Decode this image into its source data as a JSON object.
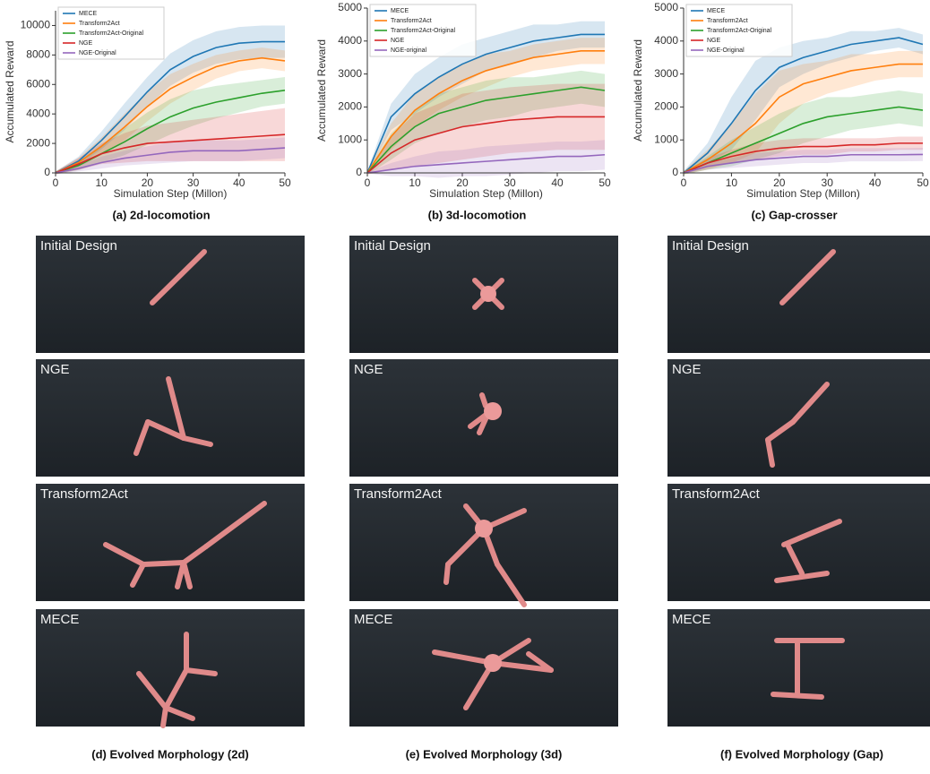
{
  "chart_data": [
    {
      "type": "line",
      "xlabel": "Simulation Step (Millon)",
      "ylabel": "Accumulated Reward",
      "caption": "(a) 2d-locomotion",
      "x": [
        0,
        5,
        10,
        15,
        20,
        25,
        30,
        35,
        40,
        45,
        50
      ],
      "xlim": [
        0,
        50
      ],
      "xticks": [
        0,
        10,
        20,
        30,
        40,
        50
      ],
      "ylim": [
        0,
        11000
      ],
      "yticks": [
        0,
        2000,
        4000,
        6000,
        8000,
        10000
      ],
      "legend": "upper-left",
      "series": [
        {
          "name": "MECE",
          "color": "#1f77b4",
          "values": [
            0,
            800,
            2200,
            3800,
            5500,
            7000,
            7900,
            8500,
            8800,
            8900,
            8900
          ],
          "std": [
            100,
            300,
            600,
            900,
            1000,
            1100,
            1100,
            1100,
            1100,
            1100,
            1100
          ]
        },
        {
          "name": "Transform2Act",
          "color": "#ff7f0e",
          "values": [
            0,
            700,
            1800,
            3100,
            4500,
            5700,
            6500,
            7200,
            7600,
            7800,
            7600
          ],
          "std": [
            100,
            300,
            600,
            900,
            1000,
            1000,
            900,
            800,
            700,
            700,
            700
          ]
        },
        {
          "name": "Transform2Act-Original",
          "color": "#2ca02c",
          "values": [
            0,
            500,
            1300,
            2100,
            3000,
            3800,
            4400,
            4800,
            5100,
            5400,
            5600
          ],
          "std": [
            100,
            300,
            600,
            900,
            1100,
            1200,
            1200,
            1100,
            1000,
            900,
            900
          ]
        },
        {
          "name": "NGE",
          "color": "#d62728",
          "values": [
            0,
            600,
            1300,
            1700,
            2000,
            2100,
            2200,
            2300,
            2400,
            2500,
            2600
          ],
          "std": [
            100,
            400,
            700,
            1000,
            1200,
            1300,
            1400,
            1500,
            1600,
            1700,
            1800
          ]
        },
        {
          "name": "NGE-Original",
          "color": "#9467bd",
          "values": [
            0,
            300,
            700,
            1000,
            1200,
            1400,
            1500,
            1500,
            1500,
            1600,
            1700
          ],
          "std": [
            100,
            200,
            400,
            500,
            600,
            700,
            700,
            700,
            700,
            700,
            700
          ]
        }
      ]
    },
    {
      "type": "line",
      "xlabel": "Simulation Step (Millon)",
      "ylabel": "Accumulated Reward",
      "caption": "(b) 3d-locomotion",
      "x": [
        0,
        5,
        10,
        15,
        20,
        25,
        30,
        35,
        40,
        45,
        50
      ],
      "xlim": [
        0,
        50
      ],
      "xticks": [
        0,
        10,
        20,
        30,
        40,
        50
      ],
      "ylim": [
        0,
        5000
      ],
      "yticks": [
        0,
        1000,
        2000,
        3000,
        4000,
        5000
      ],
      "legend": "upper-left",
      "series": [
        {
          "name": "MECE",
          "color": "#1f77b4",
          "values": [
            0,
            1700,
            2400,
            2900,
            3300,
            3600,
            3800,
            4000,
            4100,
            4200,
            4200
          ],
          "std": [
            50,
            400,
            600,
            600,
            600,
            500,
            500,
            500,
            400,
            400,
            400
          ]
        },
        {
          "name": "Transform2Act",
          "color": "#ff7f0e",
          "values": [
            0,
            1100,
            1900,
            2400,
            2800,
            3100,
            3300,
            3500,
            3600,
            3700,
            3700
          ],
          "std": [
            50,
            400,
            500,
            500,
            500,
            500,
            400,
            400,
            400,
            400,
            400
          ]
        },
        {
          "name": "Transform2Act-Original",
          "color": "#2ca02c",
          "values": [
            0,
            800,
            1400,
            1800,
            2000,
            2200,
            2300,
            2400,
            2500,
            2600,
            2500
          ],
          "std": [
            50,
            400,
            500,
            600,
            600,
            600,
            600,
            500,
            500,
            500,
            500
          ]
        },
        {
          "name": "NGE",
          "color": "#d62728",
          "values": [
            0,
            600,
            1000,
            1200,
            1400,
            1500,
            1600,
            1650,
            1700,
            1700,
            1700
          ],
          "std": [
            50,
            500,
            800,
            900,
            1000,
            1000,
            1000,
            1000,
            1000,
            1000,
            1000
          ]
        },
        {
          "name": "NGE-original",
          "color": "#9467bd",
          "values": [
            0,
            100,
            200,
            250,
            300,
            350,
            400,
            450,
            500,
            500,
            550
          ],
          "std": [
            20,
            200,
            300,
            400,
            400,
            450,
            450,
            450,
            450,
            450,
            450
          ]
        }
      ]
    },
    {
      "type": "line",
      "xlabel": "Simulation Step (Millon)",
      "ylabel": "Accumulated Reward",
      "caption": "(c) Gap-crosser",
      "x": [
        0,
        5,
        10,
        15,
        20,
        25,
        30,
        35,
        40,
        45,
        50
      ],
      "xlim": [
        0,
        50
      ],
      "xticks": [
        0,
        10,
        20,
        30,
        40,
        50
      ],
      "ylim": [
        0,
        5000
      ],
      "yticks": [
        0,
        1000,
        2000,
        3000,
        4000,
        5000
      ],
      "legend": "upper-left",
      "series": [
        {
          "name": "MECE",
          "color": "#1f77b4",
          "values": [
            0,
            600,
            1500,
            2500,
            3200,
            3500,
            3700,
            3900,
            4000,
            4100,
            3900
          ],
          "std": [
            50,
            300,
            800,
            900,
            600,
            500,
            400,
            400,
            300,
            300,
            300
          ]
        },
        {
          "name": "Transform2Act",
          "color": "#ff7f0e",
          "values": [
            0,
            400,
            900,
            1500,
            2300,
            2700,
            2900,
            3100,
            3200,
            3300,
            3300
          ],
          "std": [
            50,
            300,
            600,
            900,
            800,
            600,
            500,
            500,
            400,
            400,
            400
          ]
        },
        {
          "name": "Transform2Act-Original",
          "color": "#2ca02c",
          "values": [
            0,
            300,
            600,
            900,
            1200,
            1500,
            1700,
            1800,
            1900,
            2000,
            1900
          ],
          "std": [
            50,
            200,
            400,
            500,
            600,
            600,
            600,
            500,
            500,
            500,
            500
          ]
        },
        {
          "name": "NGE",
          "color": "#d62728",
          "values": [
            0,
            300,
            500,
            650,
            750,
            800,
            800,
            850,
            850,
            900,
            900
          ],
          "std": [
            30,
            150,
            200,
            250,
            250,
            250,
            250,
            200,
            200,
            200,
            200
          ]
        },
        {
          "name": "NGE-Original",
          "color": "#9467bd",
          "values": [
            0,
            200,
            300,
            400,
            450,
            500,
            500,
            550,
            550,
            550,
            560
          ],
          "std": [
            30,
            100,
            150,
            200,
            200,
            200,
            200,
            200,
            200,
            200,
            200
          ]
        }
      ]
    }
  ],
  "panels": [
    {
      "caption": "(d) Evolved Morphology (2d)",
      "labels": [
        "Initial Design",
        "NGE",
        "Transform2Act",
        "MECE"
      ]
    },
    {
      "caption": "(e) Evolved Morphology (3d)",
      "labels": [
        "Initial Design",
        "NGE",
        "Transform2Act",
        "MECE"
      ]
    },
    {
      "caption": "(f) Evolved Morphology (Gap)",
      "labels": [
        "Initial Design",
        "NGE",
        "Transform2Act",
        "MECE"
      ]
    }
  ]
}
